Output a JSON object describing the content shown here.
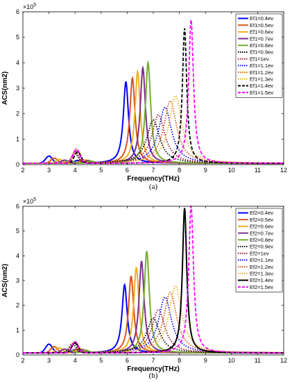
{
  "chart_data": [
    {
      "type": "line",
      "caption": "(a)",
      "xlabel": "Frequency(THz)",
      "ylabel": "ACS(nm2)",
      "y_multiplier": "×10",
      "y_multiplier_exp": "5",
      "xlim": [
        2,
        12
      ],
      "ylim": [
        0,
        6
      ],
      "x_ticks": [
        "2",
        "3",
        "4",
        "5",
        "6",
        "7",
        "8",
        "9",
        "10",
        "11",
        "12"
      ],
      "y_ticks": [
        "0",
        "1",
        "2",
        "3",
        "4",
        "5",
        "6"
      ],
      "grid": false,
      "legend_position": "top-right",
      "baseline": 0.05,
      "series": [
        {
          "name": "Ef1=0.4ev",
          "color": "#0000ff",
          "style": "solid",
          "peak_x": 5.95,
          "peak_y": 3.2,
          "width": 0.12,
          "side": [
            [
              3.0,
              0.28
            ],
            [
              4.1,
              0.1
            ]
          ]
        },
        {
          "name": "Ef1=0.5ev",
          "color": "#d95319",
          "style": "solid",
          "peak_x": 6.2,
          "peak_y": 3.35,
          "width": 0.12,
          "side": [
            [
              3.2,
              0.2
            ],
            [
              4.3,
              0.12
            ]
          ]
        },
        {
          "name": "Ef1=0.6ev",
          "color": "#edb120",
          "style": "solid",
          "peak_x": 6.4,
          "peak_y": 3.6,
          "width": 0.12,
          "side": [
            [
              3.4,
              0.15
            ],
            [
              4.4,
              0.12
            ]
          ]
        },
        {
          "name": "Ef1=0.7ev",
          "color": "#7e2f8e",
          "style": "solid",
          "peak_x": 6.6,
          "peak_y": 3.75,
          "width": 0.12,
          "side": [
            [
              3.6,
              0.12
            ],
            [
              4.5,
              0.1
            ]
          ]
        },
        {
          "name": "Ef1=0.8ev",
          "color": "#77ac30",
          "style": "solid",
          "peak_x": 6.8,
          "peak_y": 3.95,
          "width": 0.12,
          "side": [
            [
              3.8,
              0.1
            ],
            [
              4.6,
              0.08
            ]
          ]
        },
        {
          "name": "Ef1=0.9ev",
          "color": "#000000",
          "style": "dot",
          "peak_x": 7.0,
          "peak_y": 1.7,
          "width": 0.3,
          "side": [
            [
              4.0,
              0.35
            ]
          ]
        },
        {
          "name": "Ef1=1ev",
          "color": "#a2142f",
          "style": "dot",
          "peak_x": 7.2,
          "peak_y": 1.9,
          "width": 0.3,
          "side": [
            [
              4.0,
              0.45
            ]
          ]
        },
        {
          "name": "Ef1=1.1ev",
          "color": "#0000ff",
          "style": "dot",
          "peak_x": 7.45,
          "peak_y": 2.2,
          "width": 0.3,
          "side": [
            [
              4.05,
              0.5
            ]
          ]
        },
        {
          "name": "Ef1=1.2ev",
          "color": "#d95319",
          "style": "dot",
          "peak_x": 7.65,
          "peak_y": 2.45,
          "width": 0.3,
          "side": [
            [
              4.05,
              0.55
            ]
          ]
        },
        {
          "name": "Ef1=1.3ev",
          "color": "#edb120",
          "style": "dot",
          "peak_x": 7.85,
          "peak_y": 2.65,
          "width": 0.3,
          "side": [
            [
              4.1,
              0.5
            ]
          ]
        },
        {
          "name": "Ef1=1.4ev",
          "color": "#000000",
          "style": "dash",
          "peak_x": 8.2,
          "peak_y": 5.3,
          "width": 0.1,
          "side": [
            [
              4.1,
              0.45
            ]
          ]
        },
        {
          "name": "Ef1=1.5ev",
          "color": "#ff00ff",
          "style": "dash",
          "peak_x": 8.45,
          "peak_y": 5.65,
          "width": 0.11,
          "side": [
            [
              4.05,
              0.55
            ]
          ]
        }
      ]
    },
    {
      "type": "line",
      "caption": "(b)",
      "xlabel": "Frequency(THz)",
      "ylabel": "ACS(nm2)",
      "y_multiplier": "×10",
      "y_multiplier_exp": "5",
      "xlim": [
        2,
        12
      ],
      "ylim": [
        0,
        6
      ],
      "x_ticks": [
        "2",
        "3",
        "4",
        "5",
        "6",
        "7",
        "8",
        "9",
        "10",
        "11",
        "12"
      ],
      "y_ticks": [
        "0",
        "1",
        "2",
        "3",
        "4",
        "5",
        "6"
      ],
      "grid": false,
      "legend_position": "top-right",
      "baseline": 0.08,
      "series": [
        {
          "name": "Ef2=0.4ev",
          "color": "#0000ff",
          "style": "solid",
          "peak_x": 5.9,
          "peak_y": 2.75,
          "width": 0.12,
          "side": [
            [
              3.0,
              0.35
            ],
            [
              4.0,
              0.12
            ]
          ]
        },
        {
          "name": "Ef2=0.5ev",
          "color": "#d95319",
          "style": "solid",
          "peak_x": 6.15,
          "peak_y": 3.1,
          "width": 0.12,
          "side": [
            [
              3.2,
              0.25
            ],
            [
              4.1,
              0.15
            ]
          ]
        },
        {
          "name": "Ef2=0.6ev",
          "color": "#edb120",
          "style": "solid",
          "peak_x": 6.35,
          "peak_y": 3.45,
          "width": 0.12,
          "side": [
            [
              3.4,
              0.2
            ],
            [
              4.2,
              0.15
            ]
          ]
        },
        {
          "name": "Ef2=0.7ev",
          "color": "#7e2f8e",
          "style": "solid",
          "peak_x": 6.55,
          "peak_y": 3.7,
          "width": 0.12,
          "side": [
            [
              3.6,
              0.15
            ],
            [
              4.3,
              0.12
            ]
          ]
        },
        {
          "name": "Ef2=0.8ev",
          "color": "#77ac30",
          "style": "solid",
          "peak_x": 6.75,
          "peak_y": 4.1,
          "width": 0.12,
          "side": [
            [
              3.8,
              0.12
            ],
            [
              4.4,
              0.1
            ]
          ]
        },
        {
          "name": "Ef2=0.9ev",
          "color": "#000000",
          "style": "dot",
          "peak_x": 7.0,
          "peak_y": 1.4,
          "width": 0.3,
          "side": [
            [
              3.9,
              0.35
            ]
          ]
        },
        {
          "name": "Ef2=1ev",
          "color": "#a2142f",
          "style": "dot",
          "peak_x": 7.2,
          "peak_y": 1.75,
          "width": 0.3,
          "side": [
            [
              3.95,
              0.4
            ]
          ]
        },
        {
          "name": "Ef2=1.1ev",
          "color": "#0000ff",
          "style": "dot",
          "peak_x": 7.45,
          "peak_y": 2.25,
          "width": 0.3,
          "side": [
            [
              4.0,
              0.4
            ]
          ]
        },
        {
          "name": "Ef2=1.2ev",
          "color": "#d95319",
          "style": "dot",
          "peak_x": 7.65,
          "peak_y": 2.45,
          "width": 0.3,
          "side": [
            [
              4.0,
              0.45
            ]
          ]
        },
        {
          "name": "Ef2=1.3ev",
          "color": "#edb120",
          "style": "dot",
          "peak_x": 7.85,
          "peak_y": 2.7,
          "width": 0.3,
          "side": [
            [
              4.0,
              0.45
            ]
          ]
        },
        {
          "name": "Ef2=1.4ev",
          "color": "#000000",
          "style": "solid",
          "peak_x": 8.2,
          "peak_y": 5.85,
          "width": 0.1,
          "side": [
            [
              4.0,
              0.4
            ]
          ]
        },
        {
          "name": "Ef2=1.5ev",
          "color": "#ff00ff",
          "style": "dash",
          "peak_x": 8.45,
          "peak_y": 5.95,
          "width": 0.11,
          "side": [
            [
              4.0,
              0.45
            ]
          ]
        }
      ]
    }
  ]
}
